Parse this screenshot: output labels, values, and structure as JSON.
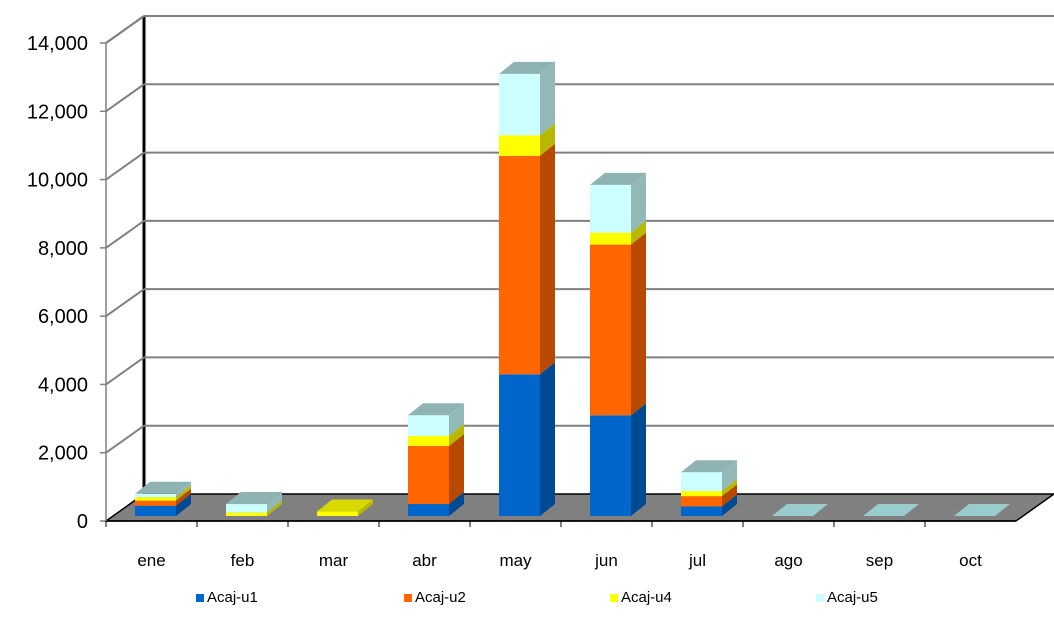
{
  "chart_data": {
    "type": "bar",
    "stacked": true,
    "three_d": true,
    "categories": [
      "ene",
      "feb",
      "mar",
      "abr",
      "may",
      "jun",
      "jul",
      "ago",
      "sep",
      "oct"
    ],
    "series": [
      {
        "name": "Acaj-u1",
        "color": "#0066CC",
        "values": [
          300,
          0,
          0,
          350,
          4150,
          2950,
          280,
          0,
          0,
          0
        ]
      },
      {
        "name": "Acaj-u2",
        "color": "#FF6600",
        "values": [
          150,
          0,
          0,
          1700,
          6400,
          5000,
          300,
          0,
          0,
          0
        ]
      },
      {
        "name": "Acaj-u4",
        "color": "#FFFF00",
        "values": [
          100,
          100,
          130,
          300,
          600,
          350,
          150,
          0,
          0,
          0
        ]
      },
      {
        "name": "Acaj-u5",
        "color": "#CCFFFF",
        "values": [
          100,
          250,
          0,
          600,
          1800,
          1400,
          550,
          0,
          0,
          0
        ]
      }
    ],
    "ylim": [
      0,
      14000
    ],
    "yticks": [
      "0",
      "2,000",
      "4,000",
      "6,000",
      "8,000",
      "10,000",
      "12,000",
      "14,000"
    ],
    "grid": true,
    "legend_position": "bottom",
    "floor_color": "#808080",
    "title": "",
    "xlabel": "",
    "ylabel": ""
  }
}
